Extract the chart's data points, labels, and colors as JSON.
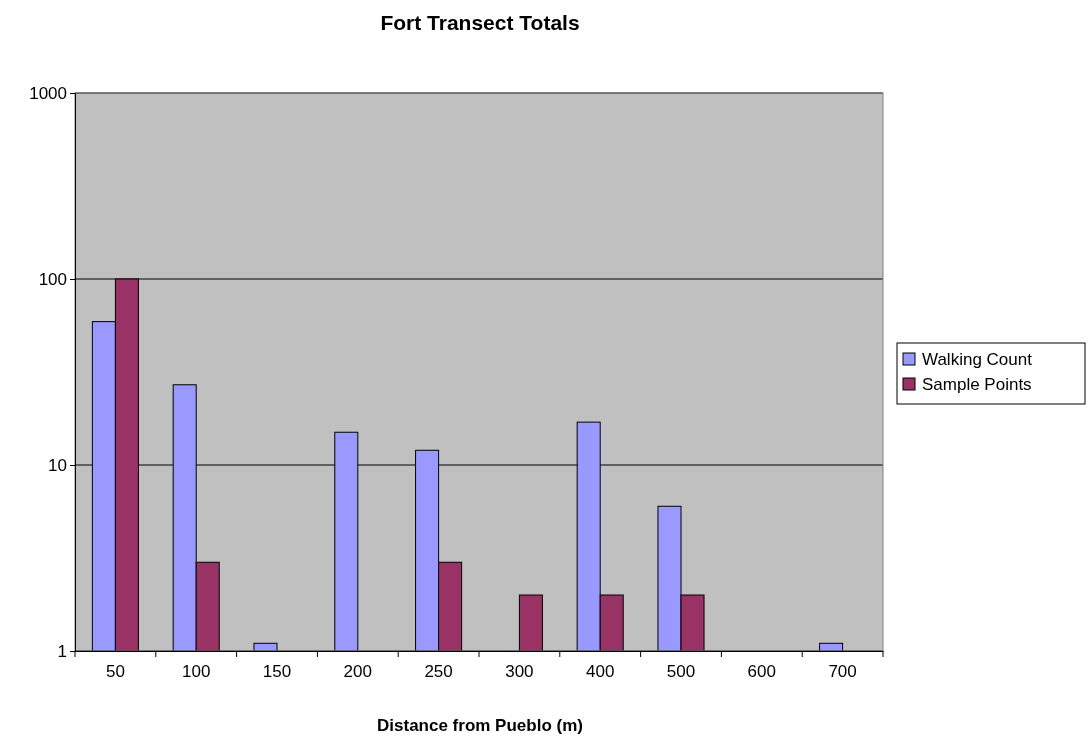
{
  "chart_data": {
    "type": "bar",
    "title": "Fort Transect Totals",
    "xlabel": "Distance from Pueblo (m)",
    "categories": [
      "50",
      "100",
      "150",
      "200",
      "250",
      "300",
      "400",
      "500",
      "600",
      "700"
    ],
    "series": [
      {
        "name": "Walking Count",
        "color": "#9999ff",
        "values": [
          59,
          27,
          1.1,
          15,
          12,
          null,
          17,
          6,
          null,
          1.1
        ]
      },
      {
        "name": "Sample Points",
        "color": "#993366",
        "values": [
          100,
          3,
          null,
          null,
          3,
          2,
          2,
          2,
          null,
          null
        ]
      }
    ],
    "log": "y",
    "ylim": [
      1,
      1000
    ],
    "yticks": [
      1,
      10,
      100,
      1000
    ],
    "grid": "y",
    "legend": "right"
  }
}
